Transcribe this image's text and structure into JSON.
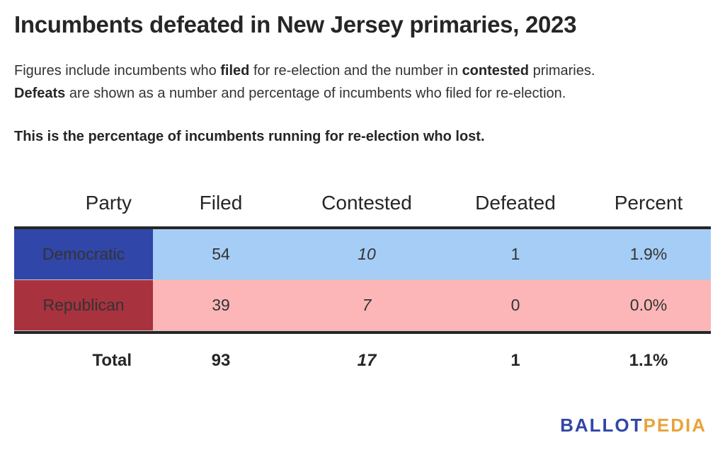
{
  "title": "Incumbents defeated in New Jersey primaries, 2023",
  "description": {
    "line1_prefix": "Figures include incumbents who ",
    "line1_bold1": "filed",
    "line1_middle": " for re-election and the number in ",
    "line1_bold2": "contested",
    "line1_suffix": " primaries.",
    "line2_bold": "Defeats",
    "line2_rest": " are shown as a number and percentage of incumbents who filed for re-election."
  },
  "note": "This is the percentage of incumbents running for re-election who lost.",
  "colors": {
    "democratic_label_bg": "#3046a8",
    "democratic_row_bg": "#a6cdf5",
    "republican_label_bg": "#a8323e",
    "republican_row_bg": "#fcb6b8",
    "logo_blue": "#3046a8",
    "logo_gold": "#e8a33a"
  },
  "chart_data": {
    "type": "table",
    "columns": [
      "Party",
      "Filed",
      "Contested",
      "Defeated",
      "Percent"
    ],
    "rows": [
      {
        "party": "Democratic",
        "filed": "54",
        "contested": "10",
        "defeated": "1",
        "percent": "1.9%"
      },
      {
        "party": "Republican",
        "filed": "39",
        "contested": "7",
        "defeated": "0",
        "percent": "0.0%"
      }
    ],
    "total": {
      "party": "Total",
      "filed": "93",
      "contested": "17",
      "defeated": "1",
      "percent": "1.1%"
    }
  },
  "logo": {
    "part1": "BALLOT",
    "part2": "PEDIA"
  }
}
